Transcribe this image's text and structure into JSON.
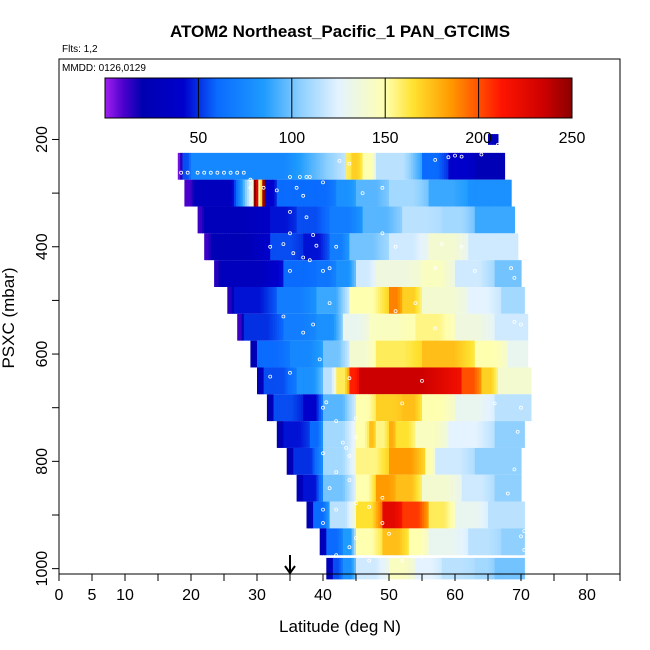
{
  "chart_data": {
    "type": "heatmap",
    "title": "ATOM2 Northeast_Pacific_1 PAN_GTCIMS",
    "subtitle_flights": "Flts: 1,2",
    "subtitle_dates": "MMDD: 0126,0129",
    "xlabel": "Latitude (deg N)",
    "ylabel": "PSXC (mbar)",
    "xlim": [
      0,
      85
    ],
    "ylim": [
      1010,
      50
    ],
    "x_major_ticks": [
      0,
      5,
      10,
      20,
      30,
      40,
      50,
      60,
      70,
      80
    ],
    "x_major_tick_labels": [
      "0",
      "5",
      "10",
      "20",
      "30",
      "40",
      "50",
      "60",
      "70",
      "80"
    ],
    "x_minor_ticks": [
      15,
      25,
      35,
      45,
      55,
      65,
      75,
      85
    ],
    "y_ticks": [
      200,
      400,
      600,
      800,
      1000
    ],
    "y_tick_labels": [
      "200",
      "400",
      "600",
      "800",
      "1000"
    ],
    "y_minor_ticks": [
      300,
      500,
      700,
      900
    ],
    "colorbar": {
      "min": 0,
      "max": 250,
      "ticks": [
        50,
        100,
        150,
        200,
        250
      ],
      "tick_labels": [
        "50",
        "100",
        "150",
        "200",
        "250"
      ],
      "stops": [
        {
          "v": 0,
          "c": "#a020f0"
        },
        {
          "v": 10,
          "c": "#4b00cc"
        },
        {
          "v": 20,
          "c": "#0000b0"
        },
        {
          "v": 42,
          "c": "#0000cd"
        },
        {
          "v": 60,
          "c": "#0a6bff"
        },
        {
          "v": 85,
          "c": "#1e9bff"
        },
        {
          "v": 105,
          "c": "#8fd0ff"
        },
        {
          "v": 125,
          "c": "#e4f3ff"
        },
        {
          "v": 150,
          "c": "#ffffb0"
        },
        {
          "v": 165,
          "c": "#ffe230"
        },
        {
          "v": 185,
          "c": "#ff9a00"
        },
        {
          "v": 212,
          "c": "#ff1500"
        },
        {
          "v": 235,
          "c": "#cc0000"
        },
        {
          "v": 250,
          "c": "#8b0000"
        }
      ]
    },
    "marker": {
      "latitude": 35,
      "description": "downward arrow at latitude 35"
    },
    "layers": [
      {
        "p": 200,
        "dp": 20,
        "segs": [
          [
            65,
            66.5,
            30
          ]
        ]
      },
      {
        "p": 250,
        "dp": 50,
        "segs": [
          [
            18,
            18.7,
            5
          ],
          [
            18.7,
            20,
            55
          ],
          [
            20,
            43.5,
            75
          ],
          [
            43.5,
            44.3,
            160
          ],
          [
            44.3,
            46,
            170
          ],
          [
            46,
            48,
            150
          ],
          [
            48,
            55,
            115
          ],
          [
            55,
            59,
            60
          ],
          [
            59,
            63,
            40
          ],
          [
            63,
            67.5,
            25
          ]
        ]
      },
      {
        "p": 300,
        "dp": 50,
        "segs": [
          [
            19,
            20.5,
            10
          ],
          [
            20.5,
            29.5,
            30
          ],
          [
            29.5,
            30.2,
            250
          ],
          [
            30.2,
            30.8,
            150
          ],
          [
            30.8,
            31.2,
            245
          ],
          [
            31.2,
            33,
            40
          ],
          [
            33,
            38,
            60
          ],
          [
            38,
            42,
            60
          ],
          [
            42,
            45,
            80
          ],
          [
            45,
            50,
            95
          ],
          [
            50,
            56,
            110
          ],
          [
            56,
            62,
            90
          ],
          [
            62,
            68.5,
            80
          ]
        ]
      },
      {
        "p": 350,
        "dp": 50,
        "segs": [
          [
            21,
            22,
            12
          ],
          [
            22,
            32,
            28
          ],
          [
            32,
            36,
            45
          ],
          [
            36,
            41,
            55
          ],
          [
            41,
            46,
            70
          ],
          [
            46,
            52,
            95
          ],
          [
            52,
            58,
            115
          ],
          [
            58,
            63,
            110
          ],
          [
            63,
            69,
            90
          ]
        ]
      },
      {
        "p": 400,
        "dp": 50,
        "segs": [
          [
            22,
            23,
            12
          ],
          [
            23,
            32,
            25
          ],
          [
            32,
            37,
            55
          ],
          [
            37,
            41,
            45
          ],
          [
            41,
            44,
            70
          ],
          [
            44,
            50,
            100
          ],
          [
            50,
            56,
            120
          ],
          [
            56,
            62,
            140
          ],
          [
            62,
            69.5,
            120
          ]
        ]
      },
      {
        "p": 450,
        "dp": 50,
        "segs": [
          [
            23.5,
            24.5,
            15
          ],
          [
            24.5,
            34,
            30
          ],
          [
            34,
            39,
            60
          ],
          [
            39,
            42,
            65
          ],
          [
            42,
            45,
            80
          ],
          [
            45,
            48,
            120
          ],
          [
            48,
            55,
            135
          ],
          [
            55,
            60,
            145
          ],
          [
            60,
            66,
            120
          ],
          [
            66,
            70,
            100
          ]
        ]
      },
      {
        "p": 500,
        "dp": 50,
        "segs": [
          [
            25.5,
            26.5,
            15
          ],
          [
            26.5,
            33,
            45
          ],
          [
            33,
            39,
            70
          ],
          [
            39,
            44,
            90
          ],
          [
            44,
            50,
            150
          ],
          [
            50,
            52,
            190
          ],
          [
            52,
            55,
            170
          ],
          [
            55,
            62,
            140
          ],
          [
            62,
            67,
            125
          ],
          [
            67,
            70.5,
            110
          ]
        ]
      },
      {
        "p": 550,
        "dp": 50,
        "segs": [
          [
            27,
            28,
            12
          ],
          [
            28,
            34,
            50
          ],
          [
            34,
            39,
            70
          ],
          [
            39,
            43,
            80
          ],
          [
            43,
            47,
            130
          ],
          [
            47,
            54,
            145
          ],
          [
            54,
            60,
            155
          ],
          [
            60,
            66,
            135
          ],
          [
            66,
            71,
            120
          ]
        ]
      },
      {
        "p": 600,
        "dp": 50,
        "segs": [
          [
            29,
            30,
            20
          ],
          [
            30,
            35,
            60
          ],
          [
            35,
            40,
            75
          ],
          [
            40,
            44,
            100
          ],
          [
            44,
            48,
            140
          ],
          [
            48,
            55,
            160
          ],
          [
            55,
            63,
            175
          ],
          [
            63,
            68,
            150
          ],
          [
            68,
            71,
            130
          ]
        ]
      },
      {
        "p": 650,
        "dp": 50,
        "segs": [
          [
            30,
            31,
            25
          ],
          [
            31,
            36,
            55
          ],
          [
            36,
            40,
            80
          ],
          [
            40,
            42,
            115
          ],
          [
            42,
            44,
            160
          ],
          [
            44,
            45.5,
            210
          ],
          [
            45.5,
            61,
            235
          ],
          [
            61,
            64,
            200
          ],
          [
            64,
            66.5,
            170
          ],
          [
            66.5,
            71.5,
            140
          ]
        ]
      },
      {
        "p": 700,
        "dp": 50,
        "segs": [
          [
            31.5,
            32.5,
            20
          ],
          [
            32.5,
            37,
            55
          ],
          [
            37,
            40,
            40
          ],
          [
            40,
            45,
            95
          ],
          [
            45,
            48,
            150
          ],
          [
            48,
            52,
            170
          ],
          [
            52,
            55,
            175
          ],
          [
            55,
            60,
            150
          ],
          [
            60,
            66,
            130
          ],
          [
            66,
            71.5,
            115
          ]
        ]
      },
      {
        "p": 750,
        "dp": 50,
        "segs": [
          [
            33,
            34,
            20
          ],
          [
            34,
            38,
            45
          ],
          [
            38,
            40,
            60
          ],
          [
            40,
            45,
            110
          ],
          [
            45,
            47,
            150
          ],
          [
            47,
            48,
            175
          ],
          [
            48,
            50,
            155
          ],
          [
            50,
            51,
            180
          ],
          [
            51,
            54,
            165
          ],
          [
            54,
            59,
            145
          ],
          [
            59,
            66,
            125
          ],
          [
            66,
            70.5,
            105
          ]
        ]
      },
      {
        "p": 800,
        "dp": 50,
        "segs": [
          [
            34.5,
            35.5,
            20
          ],
          [
            35.5,
            40,
            50
          ],
          [
            40,
            45,
            110
          ],
          [
            45,
            50,
            155
          ],
          [
            50,
            55.5,
            185
          ],
          [
            55.5,
            57,
            150
          ],
          [
            57,
            63,
            120
          ],
          [
            63,
            70,
            105
          ]
        ]
      },
      {
        "p": 850,
        "dp": 50,
        "segs": [
          [
            36,
            37,
            25
          ],
          [
            37,
            40,
            45
          ],
          [
            40,
            45,
            100
          ],
          [
            45,
            48,
            150
          ],
          [
            48,
            51,
            185
          ],
          [
            51,
            55,
            175
          ],
          [
            55,
            61,
            140
          ],
          [
            61,
            66,
            120
          ],
          [
            66,
            70,
            105
          ]
        ]
      },
      {
        "p": 900,
        "dp": 50,
        "segs": [
          [
            37.5,
            38.5,
            20
          ],
          [
            38.5,
            41,
            60
          ],
          [
            41,
            45,
            115
          ],
          [
            45,
            49,
            165
          ],
          [
            49,
            52,
            225
          ],
          [
            52,
            56,
            205
          ],
          [
            56,
            60,
            160
          ],
          [
            60,
            65,
            130
          ],
          [
            65,
            70.5,
            115
          ]
        ]
      },
      {
        "p": 950,
        "dp": 50,
        "segs": [
          [
            39.5,
            40.5,
            25
          ],
          [
            40.5,
            43,
            60
          ],
          [
            43,
            45,
            85
          ],
          [
            45,
            49,
            150
          ],
          [
            49,
            53,
            175
          ],
          [
            53,
            56,
            150
          ],
          [
            56,
            62,
            130
          ],
          [
            62,
            67,
            115
          ],
          [
            67,
            70.5,
            105
          ]
        ]
      },
      {
        "p": 1000,
        "dp": 40,
        "segs": [
          [
            40.5,
            41.5,
            25
          ],
          [
            41.5,
            43,
            55
          ],
          [
            43,
            45,
            80
          ],
          [
            45,
            50,
            120
          ],
          [
            50,
            54,
            145
          ],
          [
            54,
            58,
            125
          ],
          [
            58,
            63,
            115
          ],
          [
            63,
            66,
            110
          ],
          [
            66,
            70.5,
            100
          ]
        ]
      }
    ],
    "sample_points": [
      [
        66.5,
        210
      ],
      [
        65.5,
        215
      ],
      [
        64,
        228
      ],
      [
        61,
        232
      ],
      [
        60,
        230
      ],
      [
        59,
        233
      ],
      [
        57,
        238
      ],
      [
        44,
        245
      ],
      [
        42.5,
        240
      ],
      [
        18.5,
        262
      ],
      [
        19.5,
        262
      ],
      [
        21,
        262
      ],
      [
        22,
        262
      ],
      [
        23,
        262
      ],
      [
        24,
        262
      ],
      [
        25,
        262
      ],
      [
        26,
        262
      ],
      [
        27,
        262
      ],
      [
        28,
        262
      ],
      [
        29,
        275
      ],
      [
        35,
        270
      ],
      [
        36.5,
        270
      ],
      [
        37.5,
        270
      ],
      [
        38,
        270
      ],
      [
        29,
        290
      ],
      [
        31,
        290
      ],
      [
        33,
        295
      ],
      [
        36,
        290
      ],
      [
        37,
        305
      ],
      [
        46,
        300
      ],
      [
        49,
        290
      ],
      [
        40,
        280
      ],
      [
        37.5,
        345
      ],
      [
        35,
        335
      ],
      [
        35,
        375
      ],
      [
        38.5,
        378
      ],
      [
        49,
        375
      ],
      [
        35.5,
        412
      ],
      [
        37,
        420
      ],
      [
        38,
        425
      ],
      [
        32,
        400
      ],
      [
        34,
        395
      ],
      [
        39,
        398
      ],
      [
        42,
        400
      ],
      [
        51,
        400
      ],
      [
        58,
        395
      ],
      [
        61,
        400
      ],
      [
        35,
        445
      ],
      [
        40,
        445
      ],
      [
        41,
        440
      ],
      [
        57,
        440
      ],
      [
        63,
        445
      ],
      [
        69,
        458
      ],
      [
        68.5,
        440
      ],
      [
        54,
        505
      ],
      [
        41,
        505
      ],
      [
        51,
        520
      ],
      [
        34,
        530
      ],
      [
        38.5,
        545
      ],
      [
        37,
        560
      ],
      [
        57,
        552
      ],
      [
        69,
        540
      ],
      [
        70,
        545
      ],
      [
        39.5,
        610
      ],
      [
        32,
        642
      ],
      [
        35,
        635
      ],
      [
        44,
        645
      ],
      [
        55,
        650
      ],
      [
        40.5,
        690
      ],
      [
        40,
        700
      ],
      [
        52,
        692
      ],
      [
        66,
        692
      ],
      [
        70,
        700
      ],
      [
        42,
        725
      ],
      [
        45,
        720
      ],
      [
        69.5,
        745
      ],
      [
        45,
        755
      ],
      [
        43,
        765
      ],
      [
        43.5,
        775
      ],
      [
        34,
        795
      ],
      [
        40,
        785
      ],
      [
        44,
        790
      ],
      [
        69,
        815
      ],
      [
        42,
        820
      ],
      [
        44,
        835
      ],
      [
        41,
        850
      ],
      [
        49,
        868
      ],
      [
        45,
        878
      ],
      [
        68,
        860
      ],
      [
        40,
        890
      ],
      [
        42,
        890
      ],
      [
        47,
        885
      ],
      [
        49,
        915
      ],
      [
        40,
        915
      ],
      [
        70.5,
        930
      ],
      [
        50,
        935
      ],
      [
        70,
        940
      ],
      [
        45,
        943
      ],
      [
        44,
        960
      ],
      [
        70.5,
        965
      ],
      [
        42,
        975
      ],
      [
        47,
        985
      ],
      [
        52,
        985
      ],
      [
        55,
        978
      ]
    ]
  }
}
